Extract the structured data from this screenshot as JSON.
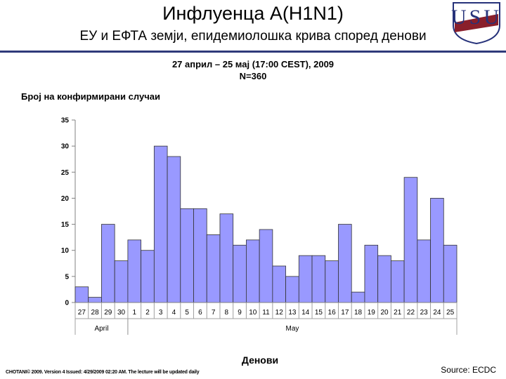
{
  "header": {
    "title": "Инфлуенца A(H1N1)",
    "subtitle": "ЕУ и ЕФТА земји, епидемиолошка крива според денови",
    "date_range": "27 април – 25 мај (17:00 CEST), 2009",
    "n_count": "N=360"
  },
  "footer": {
    "note": "CHOTANI© 2009. Version 4 Issued: 4/29/2009 02:20 AM. The lecture will be updated daily",
    "source": "Source: ECDC"
  },
  "logo": {
    "text": "USU"
  },
  "chart_data": {
    "type": "bar",
    "ylabel": "Број на конфирмирани случаи",
    "xlabel": "Денови",
    "ylim": [
      0,
      35
    ],
    "yticks": [
      0,
      5,
      10,
      15,
      20,
      25,
      30,
      35
    ],
    "grid": false,
    "bar_color": "#9999ff",
    "categories": [
      "27",
      "28",
      "29",
      "30",
      "1",
      "2",
      "3",
      "4",
      "5",
      "6",
      "7",
      "8",
      "9",
      "10",
      "11",
      "12",
      "13",
      "14",
      "15",
      "16",
      "17",
      "18",
      "19",
      "20",
      "21",
      "22",
      "23",
      "24",
      "25"
    ],
    "values": [
      3,
      1,
      15,
      8,
      12,
      10,
      30,
      28,
      18,
      18,
      13,
      17,
      11,
      12,
      14,
      7,
      5,
      9,
      9,
      8,
      15,
      2,
      11,
      9,
      8,
      24,
      12,
      20,
      11
    ],
    "groups": [
      {
        "label": "April",
        "start": 0,
        "end": 3
      },
      {
        "label": "May",
        "start": 4,
        "end": 28
      }
    ]
  }
}
